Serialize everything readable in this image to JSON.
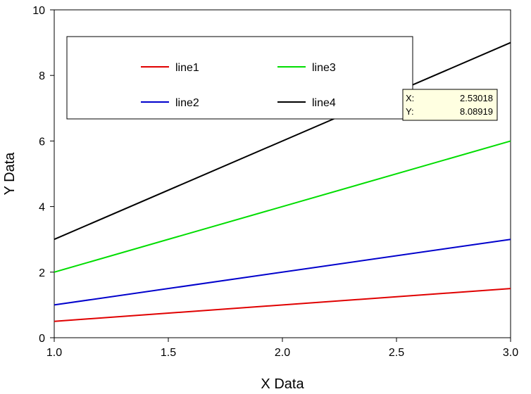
{
  "chart_data": {
    "type": "line",
    "xlabel": "X Data",
    "ylabel": "Y Data",
    "xlim": [
      1.0,
      3.0
    ],
    "ylim": [
      0,
      10
    ],
    "x_ticks": [
      "1.0",
      "1.5",
      "2.0",
      "2.5",
      "3.0"
    ],
    "y_ticks": [
      "0",
      "2",
      "4",
      "6",
      "8",
      "10"
    ],
    "grid": false,
    "legend_placement": "top-left inside plot",
    "series": [
      {
        "name": "line1",
        "color": "#e00000",
        "x": [
          1.0,
          3.0
        ],
        "y": [
          0.5,
          1.5
        ]
      },
      {
        "name": "line2",
        "color": "#0000cc",
        "x": [
          1.0,
          3.0
        ],
        "y": [
          1.0,
          3.0
        ]
      },
      {
        "name": "line3",
        "color": "#00dd00",
        "x": [
          1.0,
          3.0
        ],
        "y": [
          2.0,
          6.0
        ]
      },
      {
        "name": "line4",
        "color": "#000000",
        "x": [
          1.0,
          3.0
        ],
        "y": [
          3.0,
          9.0
        ]
      }
    ],
    "tooltip": {
      "x_label": "X:",
      "x_value": "2.53018",
      "y_label": "Y:",
      "y_value": "8.08919",
      "background": "#ffffe1"
    }
  }
}
